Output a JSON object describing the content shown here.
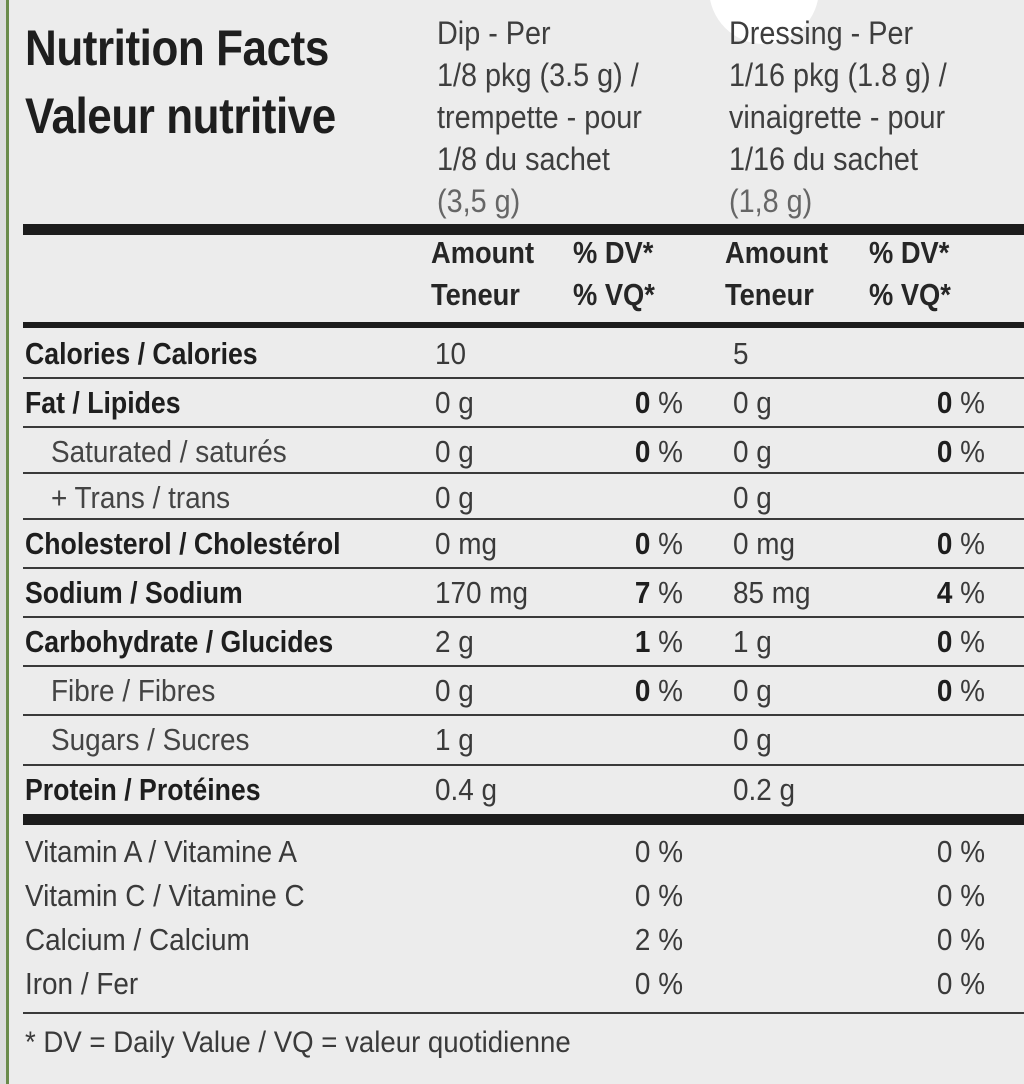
{
  "title": {
    "en": "Nutrition Facts",
    "fr": "Valeur nutritive"
  },
  "serving": {
    "dip": [
      "Dip - Per",
      "1/8 pkg (3.5 g) /",
      "trempette - pour",
      "1/8 du sachet",
      "(3,5 g)"
    ],
    "dressing": [
      "Dressing - Per",
      "1/16 pkg (1.8 g) /",
      "vinaigrette - pour",
      "1/16 du sachet",
      "(1,8 g)"
    ]
  },
  "column_headers": {
    "amount": "Amount",
    "amount_fr": "Teneur",
    "dv": "% DV*",
    "vq": "% VQ*"
  },
  "rows": [
    {
      "label": "Calories / Calories",
      "style": "bold",
      "dip_amount": "10",
      "dip_dv": "",
      "dr_amount": "5",
      "dr_dv": ""
    },
    {
      "label": "Fat / Lipides",
      "style": "bold",
      "dip_amount": "0 g",
      "dip_dv": "0",
      "dr_amount": "0 g",
      "dr_dv": "0"
    },
    {
      "label": "Saturated / saturés",
      "style": "sub",
      "dip_amount": "0 g",
      "dip_dv": "0",
      "dr_amount": "0 g",
      "dr_dv": "0"
    },
    {
      "label": "+ Trans / trans",
      "style": "sub",
      "dip_amount": "0 g",
      "dip_dv": "",
      "dr_amount": "0 g",
      "dr_dv": ""
    },
    {
      "label": "Cholesterol / Cholestérol",
      "style": "bold",
      "dip_amount": "0 mg",
      "dip_dv": "0",
      "dr_amount": "0 mg",
      "dr_dv": "0"
    },
    {
      "label": "Sodium / Sodium",
      "style": "bold",
      "dip_amount": "170 mg",
      "dip_dv": "7",
      "dr_amount": "85 mg",
      "dr_dv": "4"
    },
    {
      "label": "Carbohydrate / Glucides",
      "style": "bold",
      "dip_amount": "2 g",
      "dip_dv": "1",
      "dr_amount": "1 g",
      "dr_dv": "0"
    },
    {
      "label": "Fibre / Fibres",
      "style": "sub",
      "dip_amount": "0 g",
      "dip_dv": "0",
      "dr_amount": "0 g",
      "dr_dv": "0"
    },
    {
      "label": "Sugars / Sucres",
      "style": "sub",
      "dip_amount": "1 g",
      "dip_dv": "",
      "dr_amount": "0 g",
      "dr_dv": ""
    },
    {
      "label": "Protein / Protéines",
      "style": "bold",
      "dip_amount": "0.4 g",
      "dip_dv": "",
      "dr_amount": "0.2 g",
      "dr_dv": ""
    }
  ],
  "percent_sign": "%",
  "vitamins": [
    {
      "label": "Vitamin A / Vitamine A",
      "dip": "0 %",
      "dressing": "0 %"
    },
    {
      "label": "Vitamin C / Vitamine C",
      "dip": "0 %",
      "dressing": "0 %"
    },
    {
      "label": "Calcium / Calcium",
      "dip": "2 %",
      "dressing": "0 %"
    },
    {
      "label": "Iron / Fer",
      "dip": "0 %",
      "dressing": "0 %"
    }
  ],
  "footnote": "* DV = Daily Value / VQ = valeur quotidienne"
}
